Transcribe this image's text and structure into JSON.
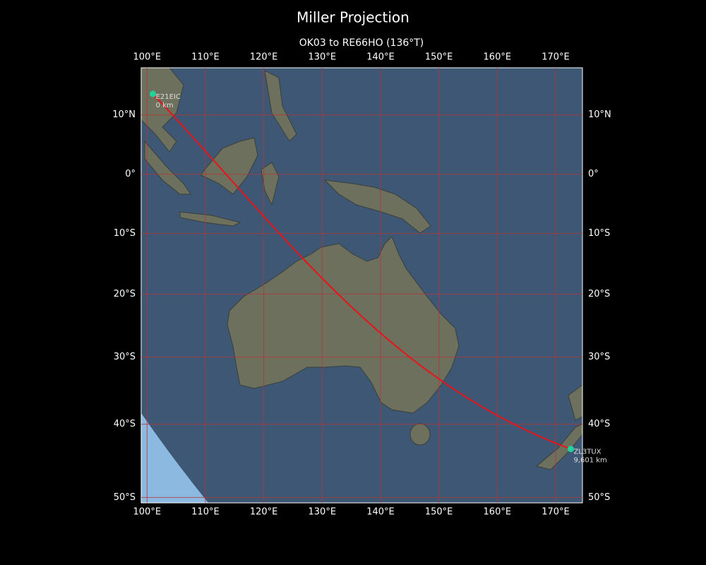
{
  "chart_data": {
    "type": "map",
    "title": "Miller Projection",
    "subtitle": "OK03 to RE66HO (136°T)",
    "projection": "miller",
    "xlim": [
      99,
      174.6
    ],
    "ylim": [
      -50.7,
      17.8
    ],
    "xticks": [
      {
        "value": 100,
        "label": "100°E"
      },
      {
        "value": 110,
        "label": "110°E"
      },
      {
        "value": 120,
        "label": "120°E"
      },
      {
        "value": 130,
        "label": "130°E"
      },
      {
        "value": 140,
        "label": "140°E"
      },
      {
        "value": 150,
        "label": "150°E"
      },
      {
        "value": 160,
        "label": "160°E"
      },
      {
        "value": 170,
        "label": "170°E"
      }
    ],
    "yticks": [
      {
        "value": 10,
        "label": "10°N"
      },
      {
        "value": 0,
        "label": "0°"
      },
      {
        "value": -10,
        "label": "10°S"
      },
      {
        "value": -20,
        "label": "20°S"
      },
      {
        "value": -30,
        "label": "30°S"
      },
      {
        "value": -40,
        "label": "40°S"
      },
      {
        "value": -50,
        "label": "50°S"
      }
    ],
    "grid": true,
    "grid_color": "#b3363a",
    "route_color": "#e8141a",
    "points": {
      "names": [
        "E21EIC",
        "ZL3TUX"
      ],
      "x": [
        101,
        172.6
      ],
      "y": [
        13.5,
        -43.5
      ],
      "values": [
        0,
        9601
      ],
      "value_labels": [
        "0 km",
        "9,601 km"
      ],
      "color": "#1fd39a"
    }
  }
}
